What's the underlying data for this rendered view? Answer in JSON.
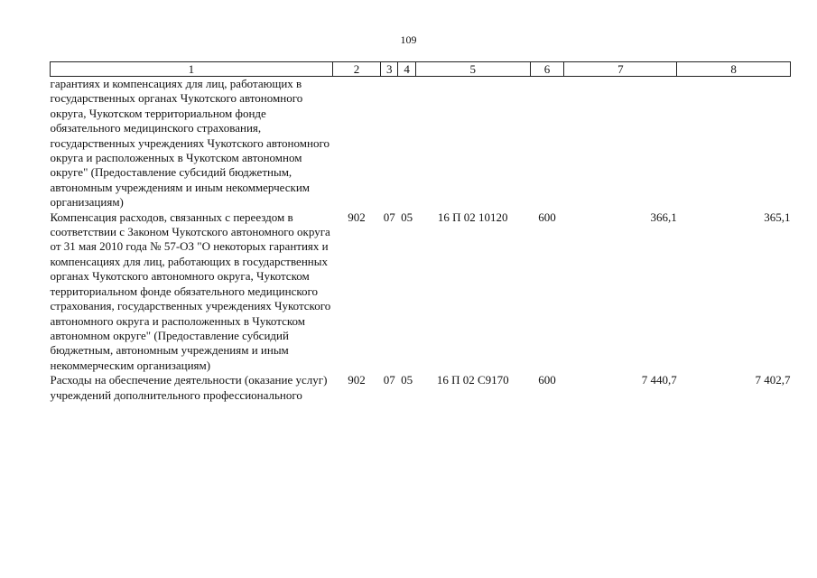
{
  "page_number": "109",
  "table": {
    "headers": [
      "1",
      "2",
      "3",
      "4",
      "5",
      "6",
      "7",
      "8"
    ],
    "rows": [
      {
        "description": "гарантиях и компенсациях для лиц, работающих в государственных органах Чукотского автономного округа, Чукотском территориальном фонде обязательного медицинского страхования, государственных учреждениях Чукотского автономного округа и расположенных в Чукотском автономном округе\" (Предоставление субсидий бюджетным, автономным учреждениям и иным некоммерческим организациям)",
        "ministry": "",
        "section": "",
        "subsection": "",
        "target": "",
        "expense_type": "",
        "amount_1": "",
        "amount_2": ""
      },
      {
        "description": "Компенсация расходов, связанных с переездом в соответствии с Законом Чукотского автономного округа от 31 мая 2010 года № 57-ОЗ \"О некоторых гарантиях и компенсациях для лиц, работающих в государственных органах Чукотского автономного округа, Чукотском территориальном фонде обязательного медицинского страхования, государственных учреждениях Чукотского автономного округа и расположенных в Чукотском автономном округе\" (Предоставление субсидий бюджетным, автономным учреждениям и иным некоммерческим организациям)",
        "ministry": "902",
        "section": "07",
        "subsection": "05",
        "target": "16 П 02 10120",
        "expense_type": "600",
        "amount_1": "366,1",
        "amount_2": "365,1"
      },
      {
        "description": "Расходы на обеспечение деятельности (оказание услуг) учреждений дополнительного профессионального",
        "ministry": "902",
        "section": "07",
        "subsection": "05",
        "target": "16 П 02 С9170",
        "expense_type": "600",
        "amount_1": "7 440,7",
        "amount_2": "7 402,7"
      }
    ]
  }
}
